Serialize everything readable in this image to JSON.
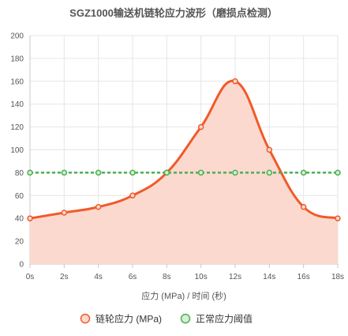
{
  "chart_data": {
    "type": "line",
    "title": "SGZ1000输送机链轮应力波形（磨损点检测）",
    "xlabel": "应力 (MPa) / 时间 (秒)",
    "ylabel": "",
    "categories": [
      "0s",
      "2s",
      "4s",
      "6s",
      "8s",
      "10s",
      "12s",
      "14s",
      "16s",
      "18s"
    ],
    "ylim": [
      0,
      200
    ],
    "yticks": [
      0,
      20,
      40,
      60,
      80,
      100,
      120,
      140,
      160,
      180,
      200
    ],
    "grid": true,
    "legend_position": "bottom",
    "series": [
      {
        "name": "链轮应力 (MPa)",
        "values": [
          40,
          45,
          50,
          60,
          80,
          120,
          160,
          100,
          50,
          40
        ],
        "color": "#f15a29",
        "fill": "#fbd9cf",
        "style": "solid",
        "smooth": true,
        "area": true
      },
      {
        "name": "正常应力阈值",
        "values": [
          80,
          80,
          80,
          80,
          80,
          80,
          80,
          80,
          80,
          80
        ],
        "color": "#4caf50",
        "fill": "#d5efd6",
        "style": "dashed",
        "smooth": false,
        "area": false
      }
    ]
  }
}
